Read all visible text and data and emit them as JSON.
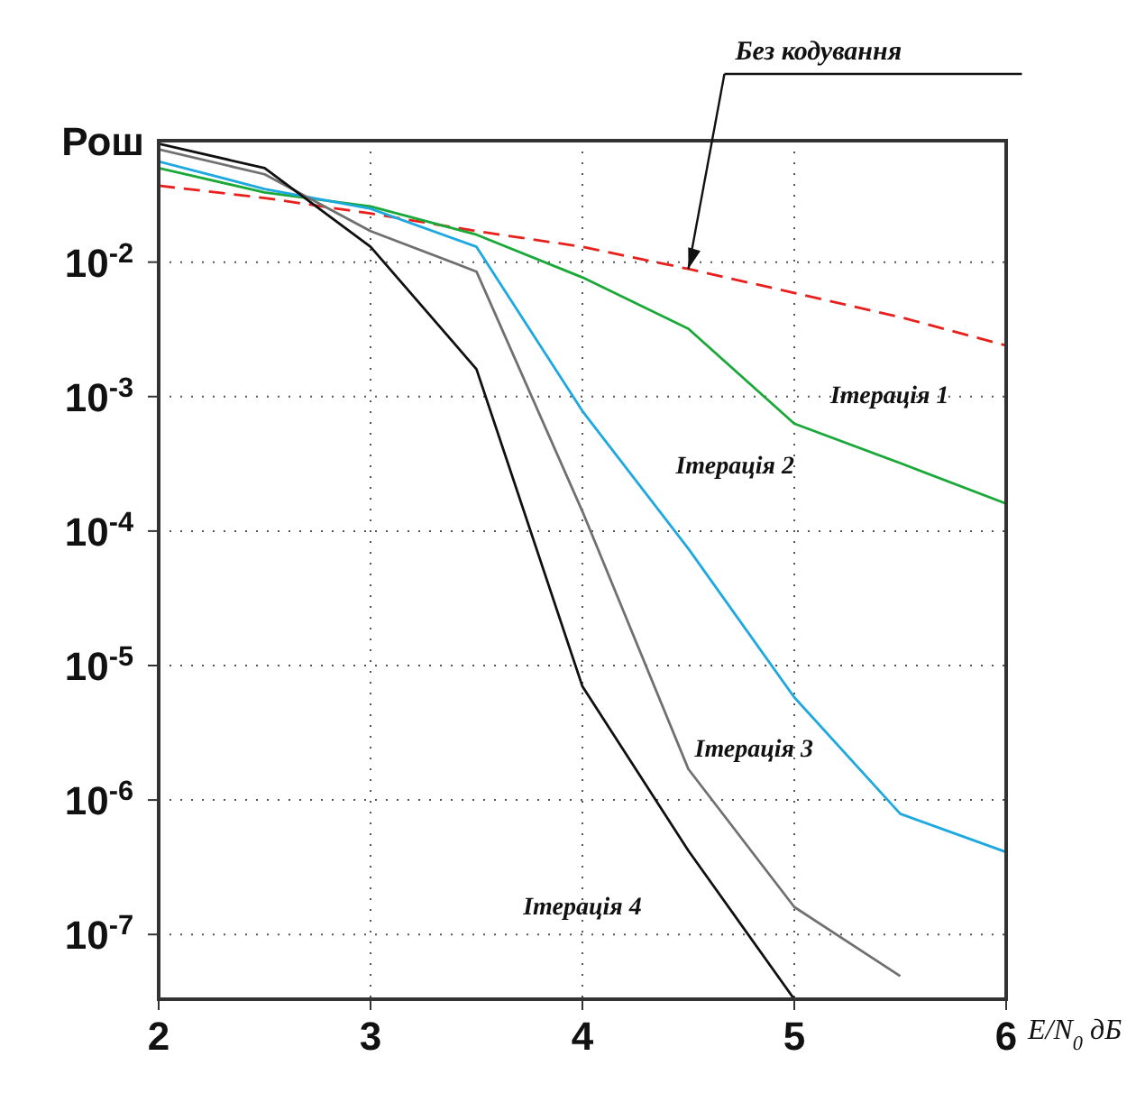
{
  "chart_data": {
    "type": "line",
    "ylabel": "Рош",
    "xlabel": "E/N$_{0}$ дБ",
    "x": [
      2,
      2.5,
      3,
      3.5,
      4,
      4.5,
      5,
      5.5,
      6
    ],
    "series": [
      {
        "color": "#e8201c",
        "line_style": "dashed",
        "values": [
          0.037,
          0.03,
          0.023,
          0.017,
          0.013,
          0.0089,
          0.0059,
          0.0039,
          0.0024
        ]
      },
      {
        "name": "Ітерація 1",
        "color": "#1aa838",
        "values": [
          0.05,
          0.033,
          0.026,
          0.016,
          0.0077,
          0.0032,
          0.00063,
          0.00032,
          0.00016
        ]
      },
      {
        "name": "Ітерація 2",
        "color": "#1ea8e0",
        "values": [
          0.056,
          0.035,
          0.025,
          0.013,
          0.00078,
          7.4e-05,
          5.8e-06,
          7.9e-07,
          4.1e-07
        ]
      },
      {
        "name": "Ітерація 3",
        "color": "#707070",
        "values": [
          0.069,
          0.045,
          0.017,
          0.0085,
          0.00014,
          1.7e-06,
          1.6e-07,
          4.9e-08,
          null
        ]
      },
      {
        "name": "Ітерація 4",
        "color": "#101010",
        "values": [
          0.076,
          0.05,
          0.013,
          0.0016,
          7e-06,
          4.2e-07,
          3.3e-08,
          null,
          null
        ]
      }
    ],
    "annotations": [
      {
        "text": "Без кодування",
        "x": 4.5,
        "y": 0.0089
      }
    ],
    "xlim": [
      2,
      6
    ],
    "xticks": [
      2,
      3,
      4,
      5,
      6
    ],
    "ylim": [
      3.3e-08,
      0.08
    ],
    "yticks": [
      {
        "value": 0.01,
        "label": "10$^{-2}$"
      },
      {
        "value": 0.001,
        "label": "10$^{-3}$"
      },
      {
        "value": 0.0001,
        "label": "10$^{-4}$"
      },
      {
        "value": 1e-05,
        "label": "10$^{-5}$"
      },
      {
        "value": 1e-06,
        "label": "10$^{-6}$"
      },
      {
        "value": 1e-07,
        "label": "10$^{-7}$"
      }
    ],
    "log": "y",
    "grid": true,
    "legend": false,
    "marker": "none",
    "line_style": "solid"
  }
}
